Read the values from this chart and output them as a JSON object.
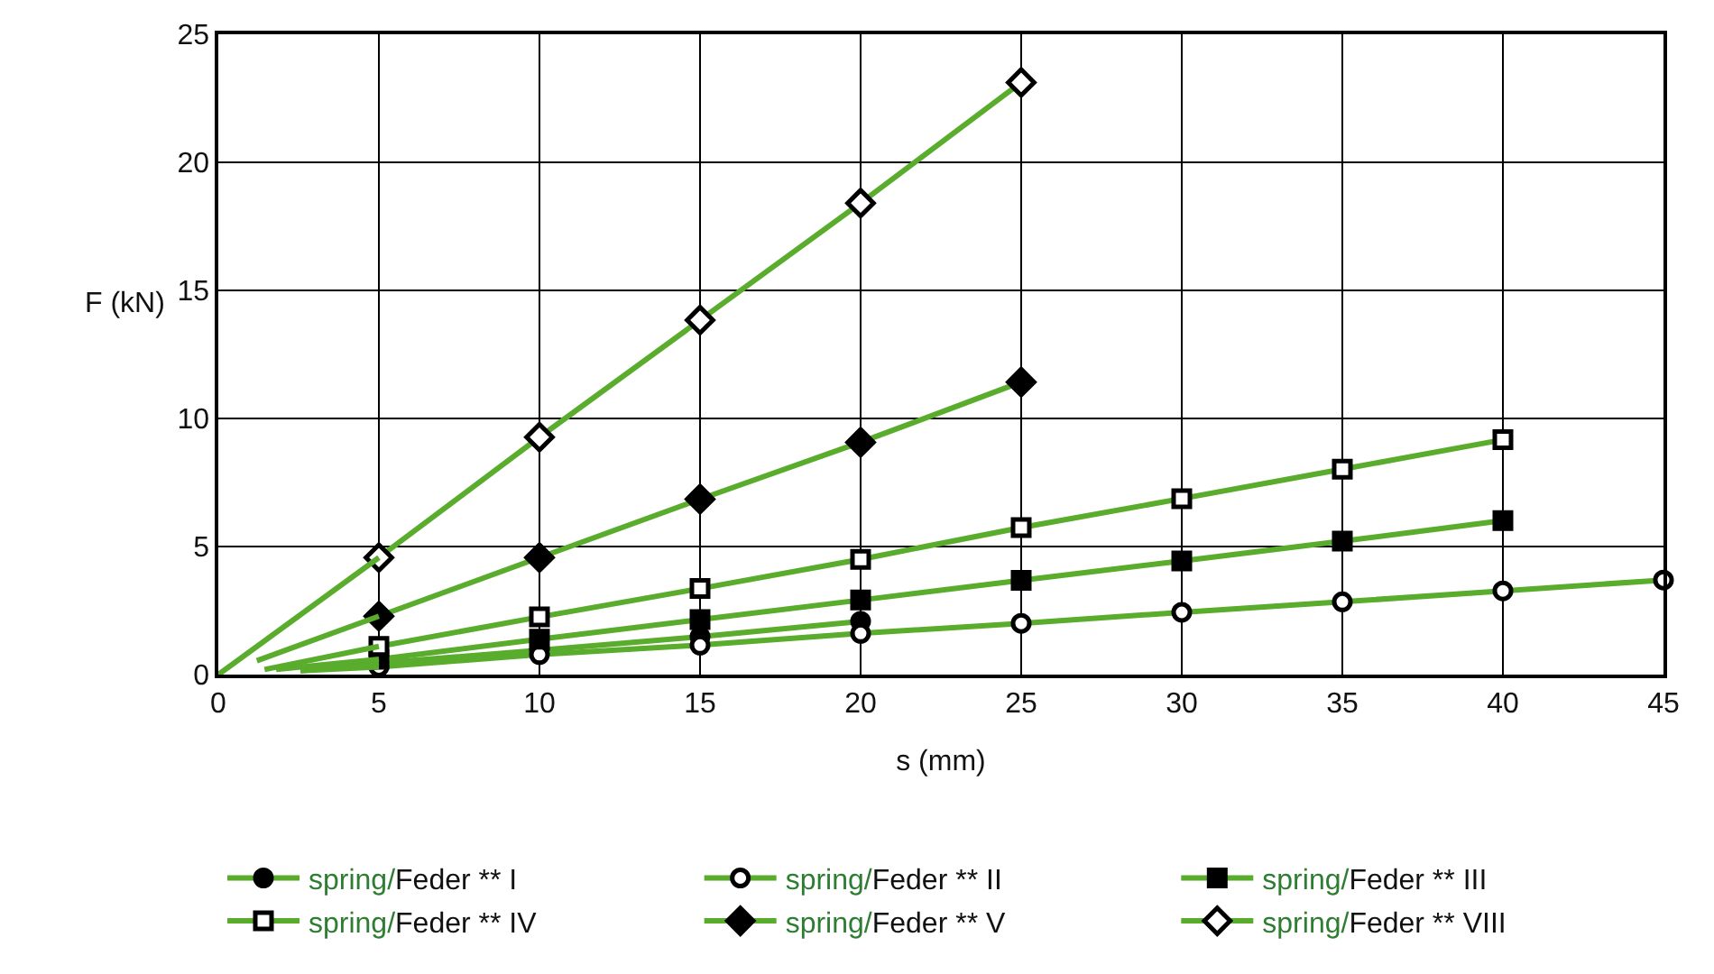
{
  "chart_data": {
    "type": "line",
    "xlabel": "s (mm)",
    "ylabel": "F (kN)",
    "xlim": [
      0,
      45
    ],
    "xticks": [
      0,
      5,
      10,
      15,
      20,
      25,
      30,
      35,
      40,
      45
    ],
    "ylim": [
      0,
      25
    ],
    "yticks": [
      0,
      5,
      10,
      15,
      20,
      25
    ],
    "grid": true,
    "legend": "bottom",
    "series": [
      {
        "name": "spring/Feder ** I",
        "color": "#5aac2c",
        "marker": "circle",
        "x": [
          5,
          10,
          15,
          20
        ],
        "values": [
          0.45,
          0.95,
          1.48,
          2.08
        ]
      },
      {
        "name": "spring/Feder ** II",
        "color": "#5aac2c",
        "marker": "circle-open",
        "x": [
          5,
          10,
          15,
          20,
          25,
          30,
          35,
          40,
          45
        ],
        "values": [
          0.3,
          0.78,
          1.15,
          1.61,
          2.0,
          2.43,
          2.84,
          3.27,
          3.69
        ]
      },
      {
        "name": "spring/Feder ** III",
        "color": "#5aac2c",
        "marker": "square",
        "x": [
          5,
          10,
          15,
          20,
          25,
          30,
          35,
          40
        ],
        "values": [
          0.6,
          1.38,
          2.15,
          2.91,
          3.68,
          4.44,
          5.21,
          6.01
        ]
      },
      {
        "name": "spring/Feder ** IV",
        "color": "#5aac2c",
        "marker": "square-open",
        "x": [
          5,
          10,
          15,
          20,
          25,
          30,
          35,
          40
        ],
        "values": [
          1.1,
          2.25,
          3.36,
          4.5,
          5.74,
          6.87,
          8.02,
          9.17
        ]
      },
      {
        "name": "spring/Feder ** V",
        "color": "#5aac2c",
        "marker": "diamond",
        "x": [
          5,
          10,
          15,
          20,
          25
        ],
        "values": [
          2.28,
          4.57,
          6.85,
          9.07,
          11.42
        ]
      },
      {
        "name": "spring/Feder ** VIII",
        "color": "#5aac2c",
        "marker": "diamond-open",
        "x": [
          5,
          10,
          15,
          20,
          25
        ],
        "values": [
          4.57,
          9.27,
          13.84,
          18.41,
          23.12
        ]
      },
      {
        "color": "#5aac2c",
        "marker": "none",
        "x": [
          2.56,
          5
        ],
        "values": [
          0.15,
          0.45
        ]
      },
      {
        "color": "#5aac2c",
        "marker": "none",
        "x": [
          2.56,
          5
        ],
        "values": [
          0.15,
          0.3
        ]
      },
      {
        "color": "#5aac2c",
        "marker": "none",
        "x": [
          1.8,
          5
        ],
        "values": [
          0.2,
          0.6
        ]
      },
      {
        "color": "#5aac2c",
        "marker": "none",
        "x": [
          1.44,
          5
        ],
        "values": [
          0.2,
          1.1
        ]
      },
      {
        "color": "#5aac2c",
        "marker": "none",
        "x": [
          1.2,
          5
        ],
        "values": [
          0.54,
          2.28
        ]
      },
      {
        "color": "#5aac2c",
        "marker": "none",
        "x": [
          0,
          5
        ],
        "values": [
          0,
          4.57
        ]
      }
    ]
  }
}
